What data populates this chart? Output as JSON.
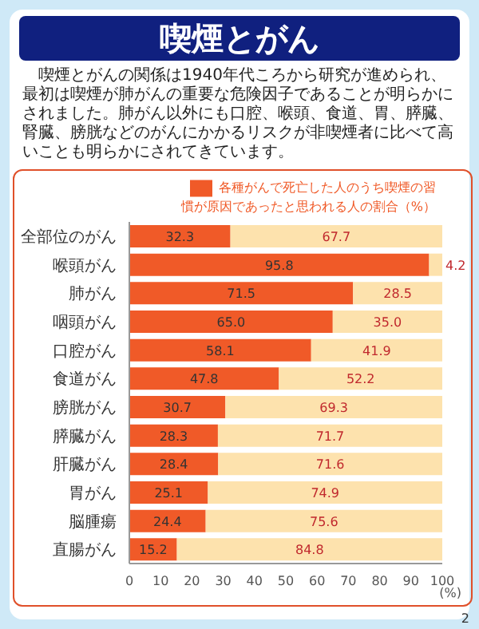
{
  "chart_data": {
    "type": "bar",
    "orientation": "horizontal",
    "stacked": true,
    "title": "喫煙とがん",
    "subtitle": "喫煙とがんの関係は1940年代ころから研究が進められ、最初は喫煙が肺がんの重要な危険因子であることが明らかにされました。肺がん以外にも口腔、喉頭、食道、胃、膵臓、腎臓、膀胱などのがんにかかるリスクが非喫煙者に比べて高いことも明らかにされてきています。",
    "categories": [
      "全部位のがん",
      "喉頭がん",
      "肺がん",
      "咽頭がん",
      "口腔がん",
      "食道がん",
      "膀胱がん",
      "膵臓がん",
      "肝臓がん",
      "胃がん",
      "脳腫瘍",
      "直腸がん"
    ],
    "series": [
      {
        "name": "各種がんで死亡した人のうち喫煙の習慣が原因であったと思われる人の割合（%）",
        "color": "#f05a28",
        "values": [
          32.3,
          95.8,
          71.5,
          65.0,
          58.1,
          47.8,
          30.7,
          28.3,
          28.4,
          25.1,
          24.4,
          15.2
        ],
        "value_labels": [
          "32.3",
          "95.8",
          "71.5",
          "65.0",
          "58.1",
          "47.8",
          "30.7",
          "28.3",
          "28.4",
          "25.1",
          "24.4",
          "15.2"
        ]
      },
      {
        "color": "#fde2ad",
        "values": [
          67.7,
          4.2,
          28.5,
          35.0,
          41.9,
          52.2,
          69.3,
          71.7,
          71.6,
          74.9,
          75.6,
          84.8
        ],
        "value_labels": [
          "67.7",
          "4.2",
          "28.5",
          "35.0",
          "41.9",
          "52.2",
          "69.3",
          "71.7",
          "71.6",
          "74.9",
          "75.6",
          "84.8"
        ]
      }
    ],
    "xlim": [
      0,
      100
    ],
    "xticks": [
      0,
      10,
      20,
      30,
      40,
      50,
      60,
      70,
      80,
      90,
      100
    ],
    "xlabel": "(%)",
    "legend": "top right",
    "annotations": [
      "2"
    ]
  }
}
